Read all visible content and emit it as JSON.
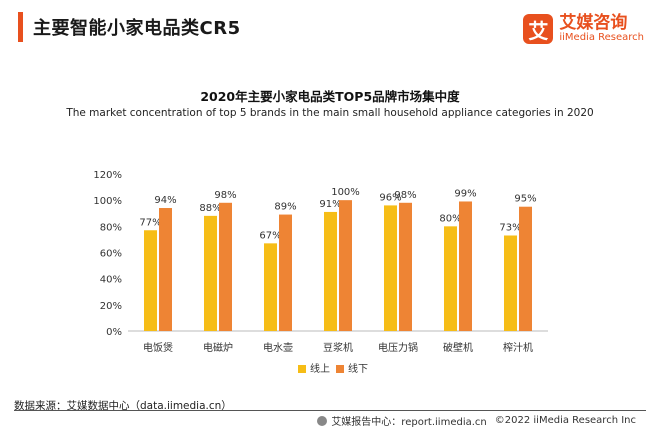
{
  "header": {
    "title": "主要智能小家电品类CR5"
  },
  "logo": {
    "mark": "艾",
    "name_cn": "艾媒咨询",
    "name_en": "iiMedia Research"
  },
  "chart_data": {
    "type": "bar",
    "title": "2020年主要小家电品类TOP5品牌市场集中度",
    "subtitle": "The market concentration of top 5 brands in the main small household appliance categories in 2020",
    "categories": [
      "电饭煲",
      "电磁炉",
      "电水壶",
      "豆浆机",
      "电压力锅",
      "破壁机",
      "榨汁机"
    ],
    "series": [
      {
        "name": "线上",
        "values": [
          77,
          88,
          67,
          91,
          96,
          80,
          73
        ],
        "color": "#f6bd16"
      },
      {
        "name": "线下",
        "values": [
          94,
          98,
          89,
          100,
          98,
          99,
          95
        ],
        "color": "#ee8434"
      }
    ],
    "data_labels": [
      [
        "77%",
        "88%",
        "67%",
        "91%",
        "96%",
        "80%",
        "73%"
      ],
      [
        "94%",
        "98%",
        "89%",
        "100%",
        "98%",
        "99%",
        "95%"
      ]
    ],
    "yticks": [
      "0%",
      "20%",
      "40%",
      "60%",
      "80%",
      "100%",
      "120%"
    ],
    "ylim": [
      0,
      120
    ],
    "grid": false,
    "legend_position": "bottom-center"
  },
  "footer": {
    "source": "数据来源：艾媒数据中心（data.iimedia.cn）",
    "report_site": "艾媒报告中心：report.iimedia.cn",
    "copyright": "©2022  iiMedia Research  Inc"
  }
}
